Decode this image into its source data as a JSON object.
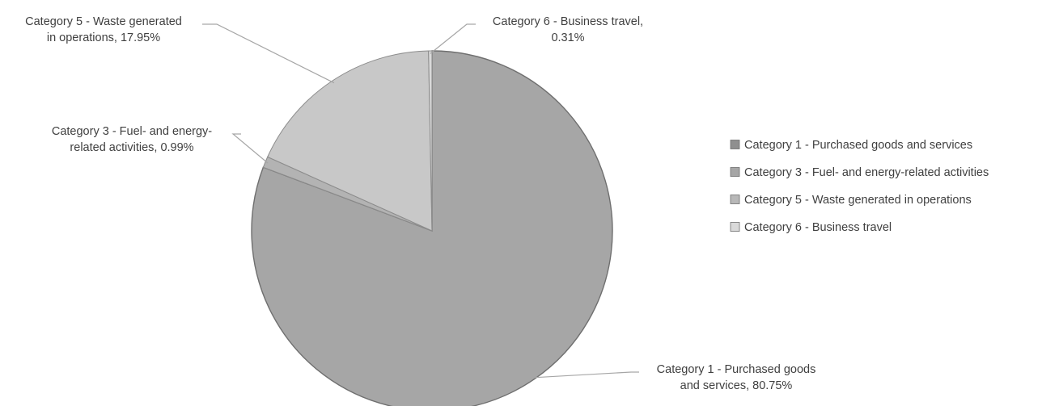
{
  "chart_data": {
    "type": "pie",
    "categories": [
      "Category 1 - Purchased goods and services",
      "Category 3 - Fuel- and energy-related activities",
      "Category 5 - Waste generated in operations",
      "Category 6 - Business travel"
    ],
    "values": [
      80.75,
      0.99,
      17.95,
      0.31
    ],
    "data_labels": [
      [
        "Category 1 - Purchased goods",
        "and services, 80.75%"
      ],
      [
        "Category 3 - Fuel- and energy-",
        "related activities, 0.99%"
      ],
      [
        "Category 5 - Waste generated",
        "in operations, 17.95%"
      ],
      [
        "Category 6 - Business travel,",
        "0.31%"
      ]
    ],
    "colors": [
      "#a6a6a6",
      "#b3b3b3",
      "#c8c8c8",
      "#d9d9d9"
    ],
    "legend_swatch_colors": [
      "#8f8f8f",
      "#a6a6a6",
      "#b8b8b8",
      "#d9d9d9"
    ],
    "legend_position": "right",
    "title": ""
  }
}
